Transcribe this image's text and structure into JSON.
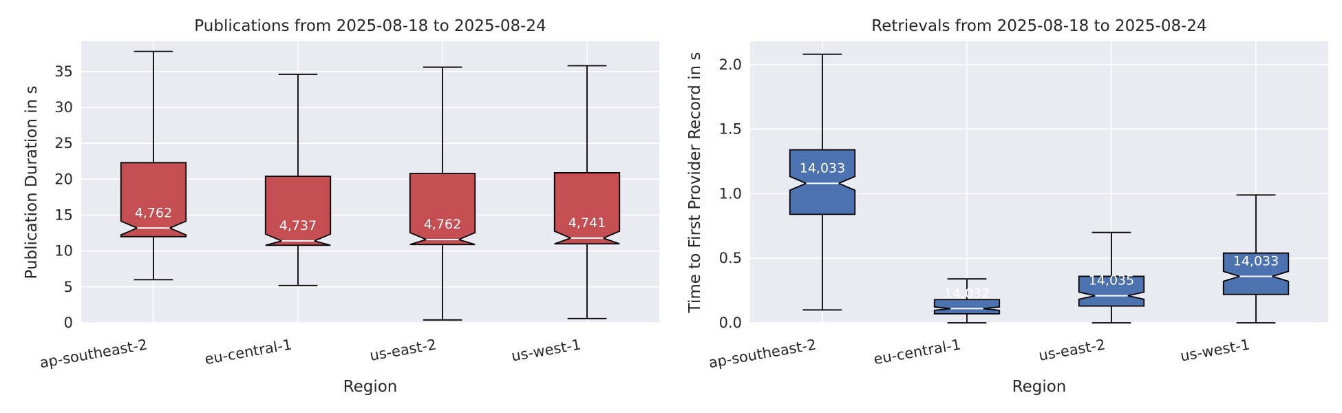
{
  "chart_data": [
    {
      "type": "boxplot",
      "title": "Publications from 2025-08-18 to 2025-08-24",
      "xlabel": "Region",
      "ylabel": "Publication Duration in s",
      "ylim": [
        0,
        39.2
      ],
      "yticks": [
        "0",
        "5",
        "10",
        "15",
        "20",
        "25",
        "30",
        "35"
      ],
      "ytick_values": [
        0,
        5,
        10,
        15,
        20,
        25,
        30,
        35
      ],
      "color": "#c44e52",
      "notched": true,
      "grid": true,
      "categories": [
        "ap-southeast-2",
        "eu-central-1",
        "us-east-2",
        "us-west-1"
      ],
      "boxes": [
        {
          "whisker_low": 6.0,
          "q1": 12.0,
          "median": 13.2,
          "q3": 22.3,
          "whisker_high": 37.8,
          "count": "4,762"
        },
        {
          "whisker_low": 5.2,
          "q1": 10.8,
          "median": 11.4,
          "q3": 20.4,
          "whisker_high": 34.6,
          "count": "4,737"
        },
        {
          "whisker_low": 0.4,
          "q1": 10.9,
          "median": 11.6,
          "q3": 20.8,
          "whisker_high": 35.6,
          "count": "4,762"
        },
        {
          "whisker_low": 0.6,
          "q1": 11.0,
          "median": 11.8,
          "q3": 20.9,
          "whisker_high": 35.8,
          "count": "4,741"
        }
      ]
    },
    {
      "type": "boxplot",
      "title": "Retrievals from 2025-08-18 to 2025-08-24",
      "xlabel": "Region",
      "ylabel": "Time to First Provider Record in s",
      "ylim": [
        0,
        2.18
      ],
      "yticks": [
        "0.0",
        "0.5",
        "1.0",
        "1.5",
        "2.0"
      ],
      "ytick_values": [
        0,
        0.5,
        1.0,
        1.5,
        2.0
      ],
      "color": "#4c72b0",
      "notched": true,
      "grid": true,
      "categories": [
        "ap-southeast-2",
        "eu-central-1",
        "us-east-2",
        "us-west-1"
      ],
      "boxes": [
        {
          "whisker_low": 0.1,
          "q1": 0.84,
          "median": 1.08,
          "q3": 1.34,
          "whisker_high": 2.08,
          "count": "14,033"
        },
        {
          "whisker_low": 0.0,
          "q1": 0.07,
          "median": 0.11,
          "q3": 0.18,
          "whisker_high": 0.34,
          "count": "14,032"
        },
        {
          "whisker_low": 0.0,
          "q1": 0.13,
          "median": 0.21,
          "q3": 0.36,
          "whisker_high": 0.7,
          "count": "14,035"
        },
        {
          "whisker_low": 0.0,
          "q1": 0.22,
          "median": 0.36,
          "q3": 0.54,
          "whisker_high": 0.99,
          "count": "14,033"
        }
      ]
    }
  ]
}
